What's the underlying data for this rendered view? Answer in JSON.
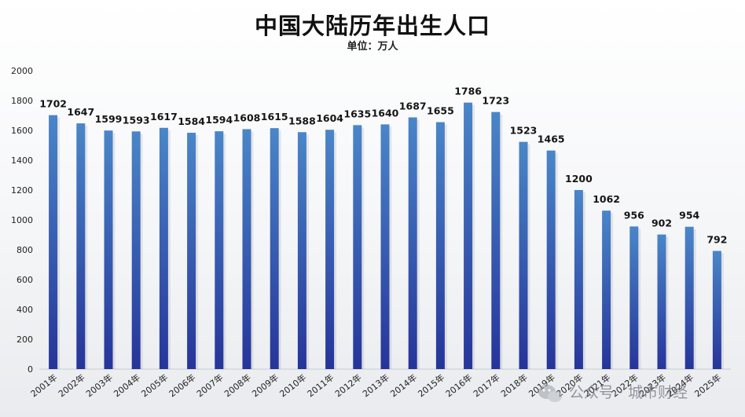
{
  "chart_data": {
    "type": "bar",
    "title": "中国大陆历年出生人口",
    "subtitle": "单位：万人",
    "categories": [
      "2001年",
      "2002年",
      "2003年",
      "2004年",
      "2005年",
      "2006年",
      "2007年",
      "2008年",
      "2009年",
      "2010年",
      "2011年",
      "2012年",
      "2013年",
      "2014年",
      "2015年",
      "2016年",
      "2017年",
      "2018年",
      "2019年",
      "2020年",
      "2021年",
      "2022年",
      "2023年",
      "2024年",
      "2025年"
    ],
    "values": [
      1702,
      1647,
      1599,
      1593,
      1617,
      1584,
      1594,
      1608,
      1615,
      1588,
      1604,
      1635,
      1640,
      1687,
      1655,
      1786,
      1723,
      1523,
      1465,
      1200,
      1062,
      956,
      902,
      954,
      792
    ],
    "ylim": [
      0,
      2000
    ],
    "yticks": [
      0,
      200,
      400,
      600,
      800,
      1000,
      1200,
      1400,
      1600,
      1800,
      2000
    ],
    "grid": false,
    "bar_color_top": "#4a86c8",
    "bar_color_bottom": "#26349a"
  },
  "watermark": {
    "text": "公众号 · 城市财经",
    "icon": "wechat-logo-icon"
  }
}
